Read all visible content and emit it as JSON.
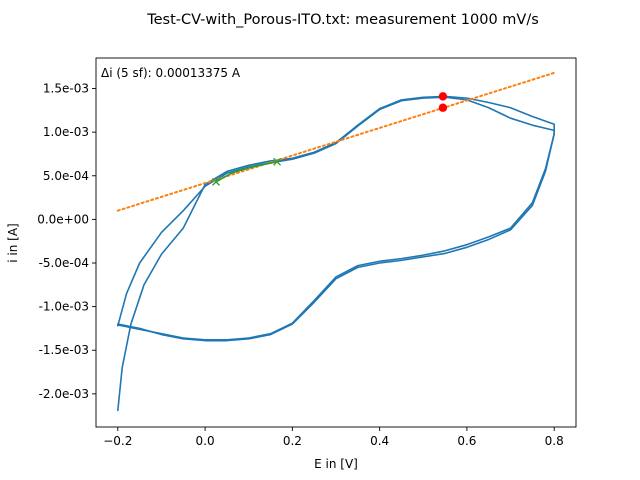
{
  "chart_data": {
    "type": "line",
    "title": "Test-CV-with_Porous-ITO.txt: measurement 1000 mV/s",
    "xlabel": "E in [V]",
    "ylabel": "i in [A]",
    "xlim": [
      -0.25,
      0.85
    ],
    "ylim": [
      -0.00238,
      0.00185
    ],
    "x_ticks": [
      -0.2,
      0.0,
      0.2,
      0.4,
      0.6,
      0.8
    ],
    "x_tick_labels": [
      "−0.2",
      "0.0",
      "0.2",
      "0.4",
      "0.6",
      "0.8"
    ],
    "y_ticks": [
      -0.002,
      -0.0015,
      -0.001,
      -0.0005,
      0.0,
      0.0005,
      0.001,
      0.0015
    ],
    "y_tick_labels": [
      "-2.0e-03",
      "-1.5e-03",
      "-1.0e-03",
      "-5.0e-04",
      "0.0e+00",
      "5.0e-04",
      "1.0e-03",
      "1.5e-03"
    ],
    "annotation": "Δi (5 sf): 0.00013375 A",
    "grid": false,
    "colors": {
      "cv": "#1f77b4",
      "baseline": "#ff7f0e",
      "fit": "#2ca02c",
      "peak": "#ff0000"
    },
    "series": [
      {
        "role": "cv-cycle-1",
        "style": "solid",
        "x": [
          -0.2,
          -0.19,
          -0.17,
          -0.14,
          -0.1,
          -0.05,
          0.0,
          0.05,
          0.1,
          0.15,
          0.2,
          0.25,
          0.3,
          0.35,
          0.4,
          0.45,
          0.5,
          0.55,
          0.6,
          0.65,
          0.7,
          0.75,
          0.8,
          0.8,
          0.78,
          0.75,
          0.7,
          0.65,
          0.6,
          0.55,
          0.5,
          0.45,
          0.4,
          0.35,
          0.3,
          0.25,
          0.2,
          0.15,
          0.1,
          0.05,
          0.0,
          -0.05,
          -0.1,
          -0.15,
          -0.2
        ],
        "y": [
          -0.00219,
          -0.0017,
          -0.0012,
          -0.00075,
          -0.0004,
          -0.0001,
          0.0004,
          0.00055,
          0.00062,
          0.00067,
          0.0007,
          0.00077,
          0.00088,
          0.00108,
          0.00127,
          0.00137,
          0.0014,
          0.00141,
          0.00139,
          0.00134,
          0.00128,
          0.00118,
          0.00109,
          0.00098,
          0.00055,
          0.00016,
          -0.00012,
          -0.00023,
          -0.00032,
          -0.00039,
          -0.00043,
          -0.00047,
          -0.0005,
          -0.00055,
          -0.00068,
          -0.00095,
          -0.0012,
          -0.00132,
          -0.00137,
          -0.00139,
          -0.00139,
          -0.00137,
          -0.00132,
          -0.00125,
          -0.0012
        ]
      },
      {
        "role": "cv-cycle-2",
        "style": "solid",
        "x": [
          -0.2,
          -0.18,
          -0.15,
          -0.1,
          -0.05,
          0.0,
          0.05,
          0.1,
          0.15,
          0.2,
          0.25,
          0.3,
          0.35,
          0.4,
          0.45,
          0.5,
          0.55,
          0.6,
          0.65,
          0.7,
          0.75,
          0.8,
          0.8,
          0.78,
          0.75,
          0.7,
          0.65,
          0.6,
          0.55,
          0.5,
          0.45,
          0.4,
          0.35,
          0.3,
          0.25,
          0.2,
          0.15,
          0.1,
          0.05,
          0.0,
          -0.05,
          -0.1,
          -0.15,
          -0.2
        ],
        "y": [
          -0.00122,
          -0.00085,
          -0.0005,
          -0.00015,
          0.0001,
          0.00038,
          0.00053,
          0.0006,
          0.00065,
          0.00069,
          0.00076,
          0.00087,
          0.00107,
          0.00126,
          0.00136,
          0.00139,
          0.0014,
          0.00137,
          0.00128,
          0.00116,
          0.00108,
          0.00102,
          0.00098,
          0.00058,
          0.00019,
          -0.0001,
          -0.0002,
          -0.00029,
          -0.00036,
          -0.00041,
          -0.00045,
          -0.00048,
          -0.00053,
          -0.00066,
          -0.00093,
          -0.00119,
          -0.00131,
          -0.00136,
          -0.00138,
          -0.00138,
          -0.00136,
          -0.00131,
          -0.00126,
          -0.00121
        ]
      },
      {
        "role": "baseline",
        "style": "dotted",
        "x": [
          -0.2,
          0.8
        ],
        "y": [
          0.0001,
          0.00168
        ]
      },
      {
        "role": "fit-region",
        "style": "solid",
        "x": [
          0.025,
          0.06,
          0.1,
          0.135,
          0.165
        ],
        "y": [
          0.00043,
          0.00053,
          0.00059,
          0.00063,
          0.00066
        ]
      }
    ],
    "markers": [
      {
        "role": "fit-start",
        "shape": "x",
        "x": 0.025,
        "y": 0.00043
      },
      {
        "role": "fit-end",
        "shape": "x",
        "x": 0.165,
        "y": 0.00066
      },
      {
        "role": "peak",
        "shape": "dot",
        "x": 0.545,
        "y": 0.00141
      },
      {
        "role": "baseline-at-peak",
        "shape": "dot",
        "x": 0.545,
        "y": 0.00128
      }
    ]
  }
}
